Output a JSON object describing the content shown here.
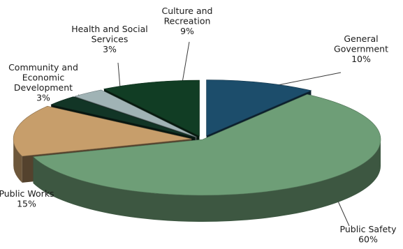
{
  "chart_data": {
    "type": "pie",
    "style": "3d-exploded",
    "categories": [
      "General Government",
      "Public Safety",
      "Public Works",
      "Community and Economic Development",
      "Health and Social Services",
      "Culture and Recreation"
    ],
    "values": [
      10,
      60,
      15,
      3,
      3,
      9
    ],
    "colors": [
      "#1c4d6b",
      "#6e9e77",
      "#c79e6b",
      "#123526",
      "#a0b3b5",
      "#113d24"
    ],
    "title": "",
    "legend": "none",
    "labels": [
      {
        "lines": [
          "General",
          "Government"
        ],
        "value": "10%"
      },
      {
        "lines": [
          "Public Safety"
        ],
        "value": "60%"
      },
      {
        "lines": [
          "Public Works"
        ],
        "value": "15%"
      },
      {
        "lines": [
          "Community and",
          "Economic",
          "Development"
        ],
        "value": "3%"
      },
      {
        "lines": [
          "Health and Social",
          "Services"
        ],
        "value": "3%"
      },
      {
        "lines": [
          "Culture and",
          "Recreation"
        ],
        "value": "9%"
      }
    ]
  }
}
